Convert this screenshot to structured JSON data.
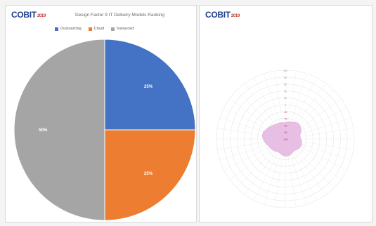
{
  "chart_data": [
    {
      "type": "pie",
      "logo": "COBIT",
      "logo_sub": "2019",
      "title": "Design Factor 9 IT Delivery Models Ranking",
      "categories": [
        "Outsourcing",
        "Cloud",
        "Insourced"
      ],
      "values": [
        25,
        25,
        50
      ],
      "data_labels": [
        "25%",
        "25%",
        "50%"
      ],
      "colors": [
        "#4472c4",
        "#ed7d31",
        "#a5a5a5"
      ],
      "legend_position": "top"
    },
    {
      "type": "radar",
      "logo": "COBIT",
      "logo_sub": "2019",
      "title": "",
      "subtitle": "",
      "axis_count": 40,
      "radial_ticks": [
        "100",
        "80",
        "60",
        "40",
        "20",
        "0",
        "-20",
        "-40",
        "-60",
        "-80",
        "-100"
      ],
      "values": [
        -52,
        -50,
        -48,
        -45,
        -42,
        -42,
        -45,
        -48,
        -55,
        -57,
        -55,
        -52,
        -50,
        -50,
        -52,
        -55,
        -57,
        -55,
        -52,
        -50,
        -50,
        -52,
        -55,
        -57,
        -55,
        -52,
        -50,
        -48,
        -45,
        -40,
        -35,
        -32,
        -33,
        -38,
        -42,
        -45,
        -48,
        -50,
        -50,
        -52
      ],
      "fill_color": "#e8bfe4",
      "grid": true
    }
  ]
}
